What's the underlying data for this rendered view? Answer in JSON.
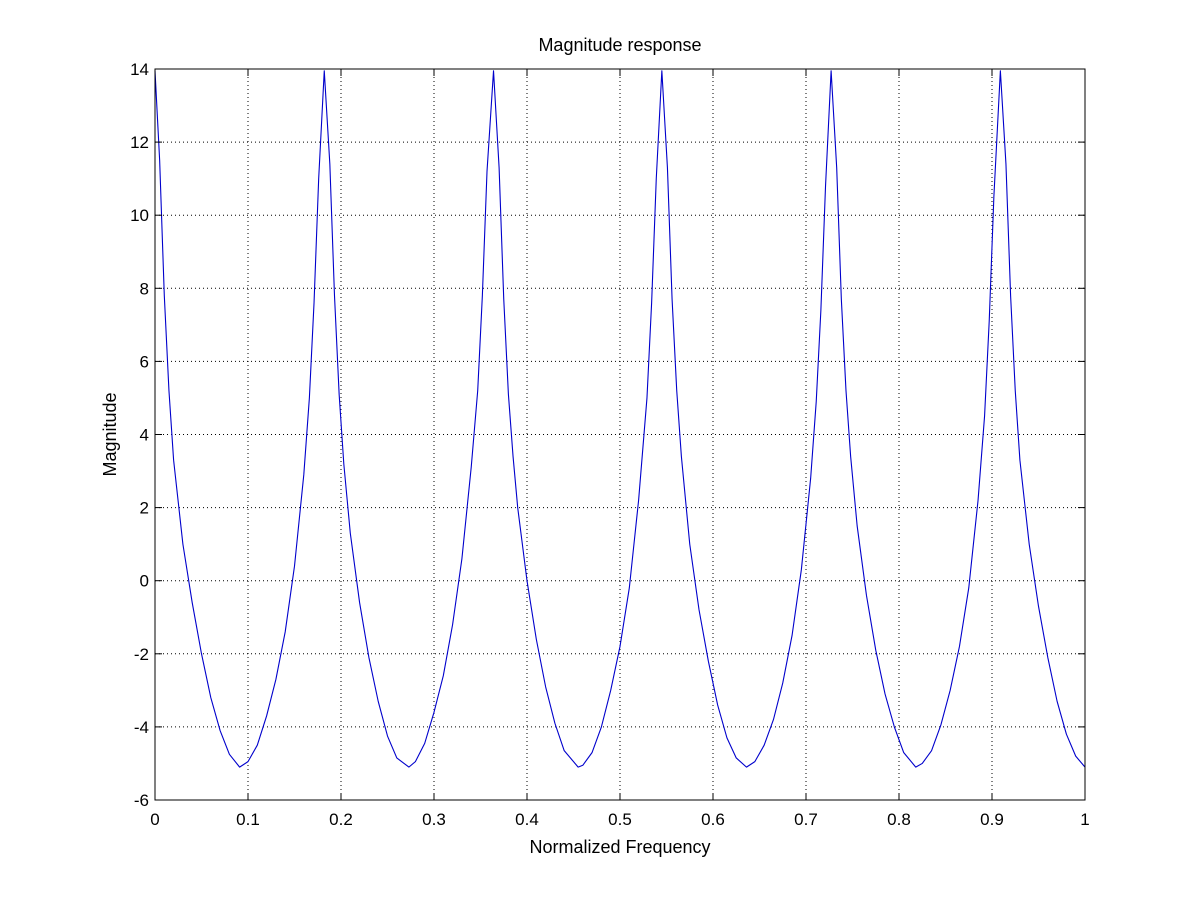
{
  "chart_data": {
    "type": "line",
    "title": "Magnitude response",
    "xlabel": "Normalized Frequency",
    "ylabel": "Magnitude",
    "xlim": [
      0,
      1
    ],
    "ylim": [
      -6,
      14
    ],
    "xticks": [
      0,
      0.1,
      0.2,
      0.3,
      0.4,
      0.5,
      0.6,
      0.7,
      0.8,
      0.9,
      1
    ],
    "xtick_labels": [
      "0",
      "0.1",
      "0.2",
      "0.3",
      "0.4",
      "0.5",
      "0.6",
      "0.7",
      "0.8",
      "0.9",
      "1"
    ],
    "yticks": [
      -6,
      -4,
      -2,
      0,
      2,
      4,
      6,
      8,
      10,
      12,
      14
    ],
    "ytick_labels": [
      "-6",
      "-4",
      "-2",
      "0",
      "2",
      "4",
      "6",
      "8",
      "10",
      "12",
      "14"
    ],
    "grid": true,
    "legend": "none",
    "series": [
      {
        "color": "#0000cc",
        "x": [
          0,
          0.005,
          0.01,
          0.015,
          0.02,
          0.03,
          0.04,
          0.05,
          0.06,
          0.07,
          0.08,
          0.091,
          0.1,
          0.11,
          0.12,
          0.13,
          0.14,
          0.15,
          0.16,
          0.166,
          0.171,
          0.176,
          0.182,
          0.188,
          0.193,
          0.198,
          0.203,
          0.21,
          0.22,
          0.23,
          0.24,
          0.25,
          0.26,
          0.273,
          0.28,
          0.29,
          0.3,
          0.31,
          0.32,
          0.33,
          0.34,
          0.347,
          0.352,
          0.357,
          0.364,
          0.37,
          0.375,
          0.38,
          0.385,
          0.39,
          0.4,
          0.41,
          0.42,
          0.43,
          0.44,
          0.455,
          0.46,
          0.47,
          0.48,
          0.49,
          0.5,
          0.51,
          0.52,
          0.529,
          0.534,
          0.539,
          0.545,
          0.551,
          0.556,
          0.561,
          0.566,
          0.575,
          0.585,
          0.595,
          0.605,
          0.615,
          0.625,
          0.636,
          0.645,
          0.655,
          0.665,
          0.675,
          0.685,
          0.695,
          0.705,
          0.711,
          0.716,
          0.721,
          0.727,
          0.733,
          0.738,
          0.743,
          0.748,
          0.755,
          0.765,
          0.775,
          0.785,
          0.795,
          0.805,
          0.818,
          0.825,
          0.835,
          0.845,
          0.855,
          0.865,
          0.875,
          0.885,
          0.892,
          0.897,
          0.902,
          0.909,
          0.915,
          0.92,
          0.925,
          0.93,
          0.94,
          0.95,
          0.96,
          0.97,
          0.98,
          0.99,
          1
        ],
        "y": [
          13.95,
          11.5,
          7.8,
          5.2,
          3.3,
          1.0,
          -0.6,
          -2.0,
          -3.2,
          -4.1,
          -4.75,
          -5.1,
          -4.95,
          -4.5,
          -3.7,
          -2.7,
          -1.4,
          0.4,
          2.9,
          5.0,
          7.6,
          11.0,
          13.95,
          11.4,
          7.8,
          5.1,
          3.2,
          1.3,
          -0.6,
          -2.1,
          -3.3,
          -4.25,
          -4.85,
          -5.1,
          -4.95,
          -4.45,
          -3.6,
          -2.6,
          -1.2,
          0.6,
          3.1,
          5.2,
          7.8,
          11.2,
          13.95,
          11.3,
          7.7,
          5.1,
          3.4,
          2.0,
          0.0,
          -1.6,
          -2.9,
          -3.9,
          -4.65,
          -5.1,
          -5.05,
          -4.7,
          -4.0,
          -3.0,
          -1.8,
          -0.2,
          2.2,
          5.0,
          7.6,
          11.0,
          13.95,
          11.3,
          7.7,
          5.2,
          3.4,
          1.0,
          -0.8,
          -2.2,
          -3.4,
          -4.3,
          -4.85,
          -5.1,
          -4.95,
          -4.5,
          -3.8,
          -2.8,
          -1.5,
          0.3,
          2.8,
          4.9,
          7.4,
          10.8,
          13.95,
          11.3,
          7.7,
          5.2,
          3.4,
          1.5,
          -0.4,
          -1.9,
          -3.1,
          -4.0,
          -4.7,
          -5.1,
          -5.0,
          -4.65,
          -3.95,
          -3.0,
          -1.8,
          -0.2,
          2.2,
          4.5,
          7.1,
          10.5,
          13.95,
          11.4,
          7.8,
          5.2,
          3.3,
          1.0,
          -0.7,
          -2.1,
          -3.3,
          -4.2,
          -4.8,
          -5.1
        ]
      }
    ]
  }
}
